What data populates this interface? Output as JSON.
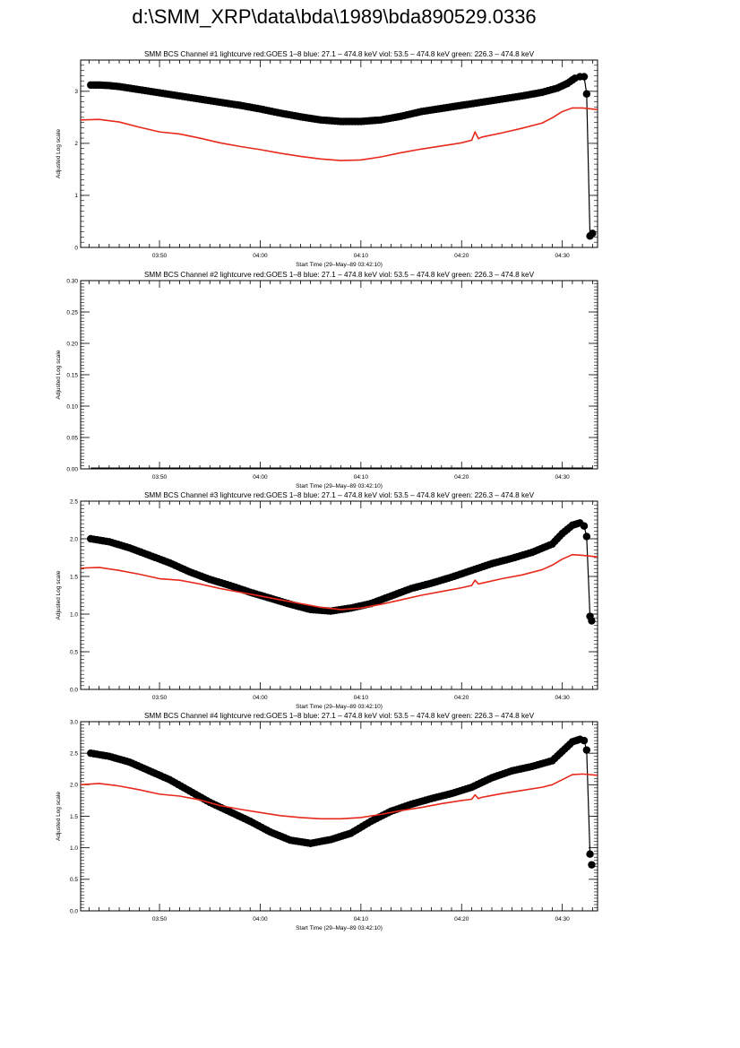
{
  "page": {
    "title": "d:\\SMM_XRP\\data\\bda\\1989\\bda890529.0336"
  },
  "colors": {
    "goes": "#e8281a",
    "bcs": "#000000",
    "axis": "#000000"
  },
  "chart_data": [
    {
      "type": "scatter",
      "title": "SMM BCS Channel #1 lightcurve  red:GOES 1–8  blue: 27.1 – 474.8 keV  viol: 53.5 – 474.8 keV  green: 226.3 – 474.8 keV",
      "xlabel": "Start Time (29–May–89 03:42:10)",
      "ylabel": "Adjusted Log scale",
      "xlim": [
        "03:42:10",
        "04:33:30"
      ],
      "ylim": [
        0,
        3.6
      ],
      "y_ticks": [
        0,
        1,
        2,
        3
      ],
      "y_tick_labels": [
        "0",
        "1",
        "2",
        "3"
      ],
      "x_ticks": [
        "03:50",
        "04:00",
        "04:10",
        "04:20",
        "04:30"
      ],
      "series": [
        {
          "style": "markers-line",
          "color": "#000000",
          "x": [
            "03:43:10",
            "03:44:00",
            "03:45:00",
            "03:46:00",
            "03:48:00",
            "03:50:00",
            "03:52:00",
            "03:54:00",
            "03:56:00",
            "03:58:00",
            "04:00:00",
            "04:02:00",
            "04:04:00",
            "04:06:00",
            "04:08:00",
            "04:10:00",
            "04:12:00",
            "04:14:00",
            "04:16:00",
            "04:18:00",
            "04:20:00",
            "04:22:00",
            "04:24:00",
            "04:26:00",
            "04:28:00",
            "04:29:30",
            "04:30:30",
            "04:31:15",
            "04:31:45",
            "04:32:10",
            "04:32:25",
            "04:32:45"
          ],
          "values": [
            3.12,
            3.12,
            3.11,
            3.09,
            3.03,
            2.97,
            2.91,
            2.85,
            2.79,
            2.73,
            2.66,
            2.58,
            2.51,
            2.45,
            2.42,
            2.42,
            2.45,
            2.52,
            2.61,
            2.67,
            2.73,
            2.79,
            2.85,
            2.91,
            2.98,
            3.06,
            3.15,
            3.25,
            3.28,
            3.28,
            2.95,
            0.22
          ]
        },
        {
          "style": "marker",
          "color": "#000000",
          "x": [
            "04:33:00"
          ],
          "values": [
            0.27
          ]
        },
        {
          "style": "line",
          "color": "#e8281a",
          "x": [
            "03:42:10",
            "03:44:00",
            "03:46:00",
            "03:48:00",
            "03:50:00",
            "03:52:00",
            "03:54:00",
            "03:56:00",
            "03:58:00",
            "04:00:00",
            "04:02:00",
            "04:04:00",
            "04:06:00",
            "04:08:00",
            "04:10:00",
            "04:12:00",
            "04:14:00",
            "04:16:00",
            "04:18:00",
            "04:20:00",
            "04:21:00",
            "04:21:20",
            "04:21:40",
            "04:22:00",
            "04:24:00",
            "04:26:00",
            "04:28:00",
            "04:29:00",
            "04:30:00",
            "04:31:00",
            "04:32:00",
            "04:33:30"
          ],
          "values": [
            2.45,
            2.46,
            2.41,
            2.31,
            2.22,
            2.18,
            2.1,
            2.01,
            1.94,
            1.88,
            1.81,
            1.75,
            1.7,
            1.67,
            1.68,
            1.74,
            1.82,
            1.89,
            1.95,
            2.01,
            2.06,
            2.22,
            2.09,
            2.12,
            2.2,
            2.29,
            2.39,
            2.49,
            2.61,
            2.68,
            2.68,
            2.65
          ]
        }
      ]
    },
    {
      "type": "scatter",
      "title": "SMM BCS Channel #2 lightcurve  red:GOES 1–8  blue: 27.1 – 474.8 keV  viol: 53.5 – 474.8 keV  green: 226.3 – 474.8 keV",
      "xlabel": "Start Time (29–May–89 03:42:10)",
      "ylabel": "Adjusted Log scale",
      "xlim": [
        "03:42:10",
        "04:33:30"
      ],
      "ylim": [
        0,
        0.3
      ],
      "y_ticks": [
        0,
        0.05,
        0.1,
        0.15,
        0.2,
        0.25,
        0.3
      ],
      "y_tick_labels": [
        "0.00",
        "0.05",
        "0.10",
        "0.15",
        "0.20",
        "0.25",
        "0.30"
      ],
      "x_ticks": [
        "03:50",
        "04:00",
        "04:10",
        "04:20",
        "04:30"
      ],
      "series": [
        {
          "style": "line",
          "color": "#000000",
          "x": [
            "03:43:10",
            "04:33:00"
          ],
          "values": [
            0.0,
            0.0
          ]
        }
      ]
    },
    {
      "type": "scatter",
      "title": "SMM BCS Channel #3 lightcurve  red:GOES 1–8  blue: 27.1 – 474.8 keV  viol: 53.5 – 474.8 keV  green: 226.3 – 474.8 keV",
      "xlabel": "Start Time (29–May–89 03:42:10)",
      "ylabel": "Adjusted Log scale",
      "xlim": [
        "03:42:10",
        "04:33:30"
      ],
      "ylim": [
        0,
        2.5
      ],
      "y_ticks": [
        0,
        0.5,
        1.0,
        1.5,
        2.0,
        2.5
      ],
      "y_tick_labels": [
        "0.0",
        "0.5",
        "1.0",
        "1.5",
        "2.0",
        "2.5"
      ],
      "x_ticks": [
        "03:50",
        "04:00",
        "04:10",
        "04:20",
        "04:30"
      ],
      "series": [
        {
          "style": "markers-line",
          "color": "#000000",
          "x": [
            "03:43:10",
            "03:45:00",
            "03:47:00",
            "03:49:00",
            "03:51:00",
            "03:53:00",
            "03:55:00",
            "03:57:00",
            "03:59:00",
            "04:01:00",
            "04:03:00",
            "04:05:00",
            "04:07:00",
            "04:09:00",
            "04:11:00",
            "04:13:00",
            "04:15:00",
            "04:17:00",
            "04:19:00",
            "04:21:00",
            "04:23:00",
            "04:25:00",
            "04:27:00",
            "04:29:00",
            "04:30:00",
            "04:31:00",
            "04:31:45",
            "04:32:10",
            "04:32:25",
            "04:32:45"
          ],
          "values": [
            2.0,
            1.96,
            1.88,
            1.78,
            1.68,
            1.56,
            1.46,
            1.38,
            1.29,
            1.21,
            1.13,
            1.06,
            1.04,
            1.08,
            1.14,
            1.24,
            1.34,
            1.41,
            1.49,
            1.58,
            1.67,
            1.74,
            1.82,
            1.93,
            2.07,
            2.18,
            2.21,
            2.17,
            2.03,
            0.97
          ]
        },
        {
          "style": "marker",
          "color": "#000000",
          "x": [
            "04:32:55"
          ],
          "values": [
            0.91
          ]
        },
        {
          "style": "line",
          "color": "#e8281a",
          "x": [
            "03:42:10",
            "03:44:00",
            "03:46:00",
            "03:48:00",
            "03:50:00",
            "03:52:00",
            "03:54:00",
            "03:56:00",
            "03:58:00",
            "04:00:00",
            "04:02:00",
            "04:04:00",
            "04:06:00",
            "04:08:00",
            "04:10:00",
            "04:12:00",
            "04:14:00",
            "04:16:00",
            "04:18:00",
            "04:20:00",
            "04:21:00",
            "04:21:20",
            "04:21:40",
            "04:22:00",
            "04:24:00",
            "04:26:00",
            "04:28:00",
            "04:29:00",
            "04:30:00",
            "04:31:00",
            "04:32:00",
            "04:33:30"
          ],
          "values": [
            1.61,
            1.62,
            1.58,
            1.53,
            1.47,
            1.45,
            1.4,
            1.34,
            1.29,
            1.24,
            1.19,
            1.14,
            1.09,
            1.06,
            1.08,
            1.13,
            1.19,
            1.25,
            1.3,
            1.35,
            1.38,
            1.45,
            1.4,
            1.41,
            1.47,
            1.52,
            1.59,
            1.65,
            1.73,
            1.79,
            1.78,
            1.76
          ]
        }
      ]
    },
    {
      "type": "scatter",
      "title": "SMM BCS Channel #4 lightcurve  red:GOES 1–8  blue: 27.1 – 474.8 keV  viol: 53.5 – 474.8 keV  green: 226.3 – 474.8 keV",
      "xlabel": "Start Time (29–May–89 03:42:10)",
      "ylabel": "Adjusted Log scale",
      "xlim": [
        "03:42:10",
        "04:33:30"
      ],
      "ylim": [
        0,
        3.0
      ],
      "y_ticks": [
        0,
        0.5,
        1.0,
        1.5,
        2.0,
        2.5,
        3.0
      ],
      "y_tick_labels": [
        "0.0",
        "0.5",
        "1.0",
        "1.5",
        "2.0",
        "2.5",
        "3.0"
      ],
      "x_ticks": [
        "03:50",
        "04:00",
        "04:10",
        "04:20",
        "04:30"
      ],
      "series": [
        {
          "style": "markers-line",
          "color": "#000000",
          "x": [
            "03:43:10",
            "03:45:00",
            "03:47:00",
            "03:49:00",
            "03:51:00",
            "03:53:00",
            "03:55:00",
            "03:57:00",
            "03:59:00",
            "04:01:00",
            "04:03:00",
            "04:05:00",
            "04:07:00",
            "04:09:00",
            "04:11:00",
            "04:13:00",
            "04:15:00",
            "04:17:00",
            "04:19:00",
            "04:21:00",
            "04:23:00",
            "04:25:00",
            "04:27:00",
            "04:29:00",
            "04:30:00",
            "04:31:00",
            "04:31:45",
            "04:32:10",
            "04:32:25",
            "04:32:45"
          ],
          "values": [
            2.5,
            2.45,
            2.36,
            2.22,
            2.08,
            1.9,
            1.72,
            1.57,
            1.42,
            1.25,
            1.12,
            1.07,
            1.13,
            1.23,
            1.42,
            1.58,
            1.69,
            1.78,
            1.86,
            1.96,
            2.11,
            2.22,
            2.29,
            2.38,
            2.53,
            2.68,
            2.72,
            2.7,
            2.55,
            0.9
          ]
        },
        {
          "style": "marker",
          "color": "#000000",
          "x": [
            "04:32:55"
          ],
          "values": [
            0.73
          ]
        },
        {
          "style": "line",
          "color": "#e8281a",
          "x": [
            "03:42:10",
            "03:44:00",
            "03:46:00",
            "03:48:00",
            "03:50:00",
            "03:52:00",
            "03:54:00",
            "03:56:00",
            "03:58:00",
            "04:00:00",
            "04:02:00",
            "04:04:00",
            "04:06:00",
            "04:08:00",
            "04:10:00",
            "04:12:00",
            "04:14:00",
            "04:16:00",
            "04:18:00",
            "04:20:00",
            "04:21:00",
            "04:21:20",
            "04:21:40",
            "04:22:00",
            "04:24:00",
            "04:26:00",
            "04:28:00",
            "04:29:00",
            "04:30:00",
            "04:31:00",
            "04:32:00",
            "04:33:30"
          ],
          "values": [
            2.0,
            2.02,
            1.98,
            1.92,
            1.85,
            1.82,
            1.76,
            1.67,
            1.61,
            1.56,
            1.51,
            1.48,
            1.46,
            1.46,
            1.48,
            1.53,
            1.59,
            1.64,
            1.7,
            1.75,
            1.77,
            1.84,
            1.78,
            1.8,
            1.86,
            1.91,
            1.96,
            2.0,
            2.08,
            2.16,
            2.17,
            2.15
          ]
        }
      ]
    }
  ]
}
